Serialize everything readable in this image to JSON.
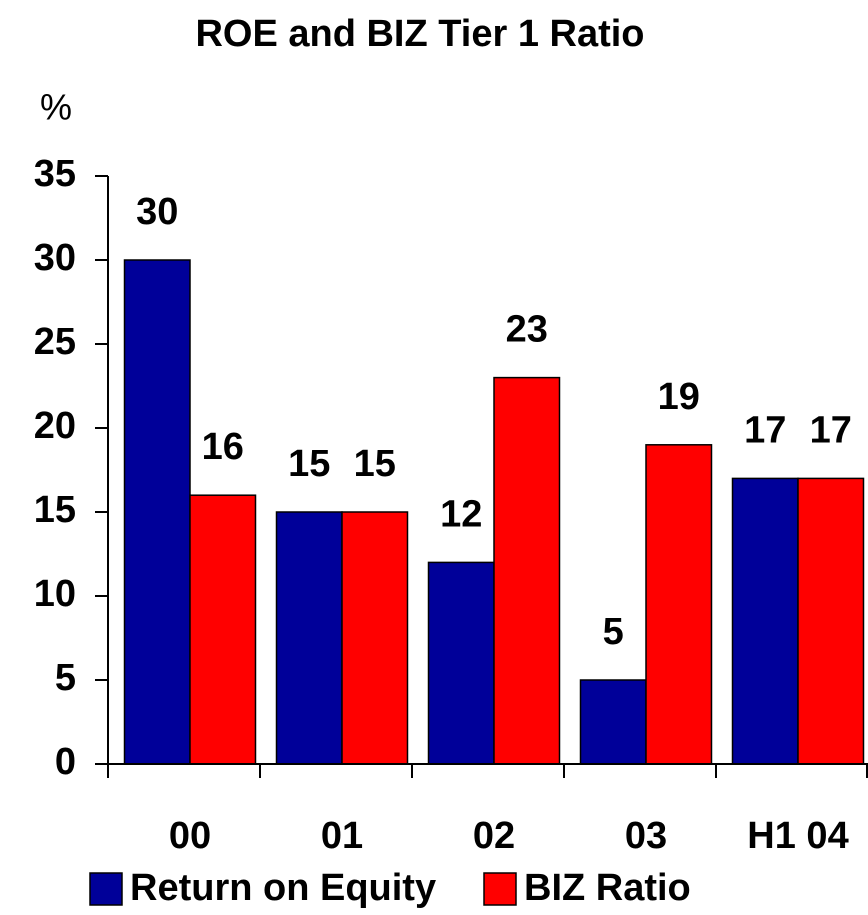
{
  "chart_data": {
    "type": "bar",
    "title": "ROE and BIZ Tier 1 Ratio",
    "y_label": "%",
    "categories": [
      "00",
      "01",
      "02",
      "03",
      "H1 04"
    ],
    "series": [
      {
        "name": "Return on Equity",
        "color": "#000099",
        "values": [
          30,
          15,
          12,
          5,
          17
        ]
      },
      {
        "name": "BIZ Ratio",
        "color": "#ff0000",
        "values": [
          16,
          15,
          23,
          19,
          17
        ]
      }
    ],
    "ylim": [
      0,
      35
    ],
    "yticks": [
      0,
      5,
      10,
      15,
      20,
      25,
      30,
      35
    ],
    "grid": false,
    "legend": "bottom"
  }
}
